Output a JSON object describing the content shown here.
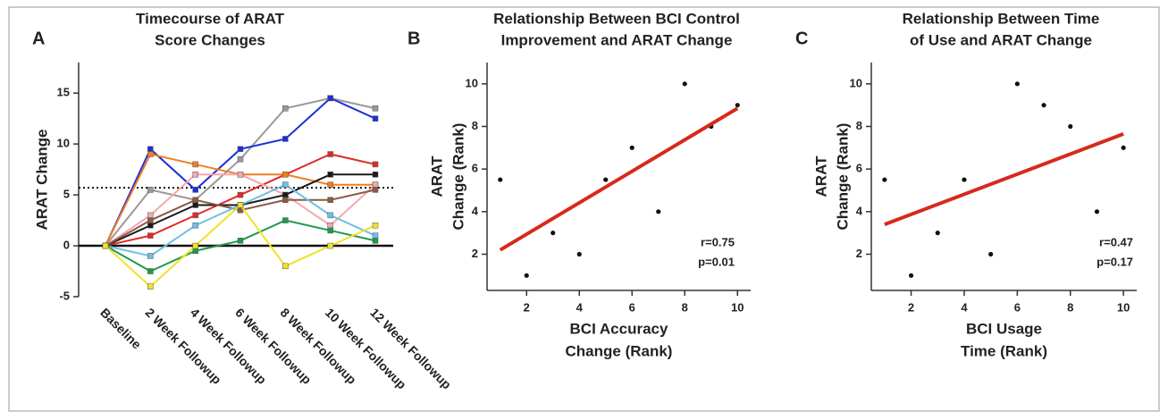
{
  "chart_data": [
    {
      "type": "line",
      "panel_label": "A",
      "title": [
        "Timecourse of ARAT",
        "Score Changes"
      ],
      "y_label": "ARAT Change",
      "categories": [
        "Baseline",
        "2 Week Followup",
        "4 Week Followup",
        "6 Week Followup",
        "8 Week Followup",
        "10 Week Followup",
        "12 Week Followup"
      ],
      "series": [
        {
          "color": "#999999",
          "values": [
            0,
            5.5,
            4.5,
            8.5,
            13.5,
            14.5,
            13.5
          ]
        },
        {
          "color": "#1f2fd6",
          "values": [
            0,
            9.5,
            5.5,
            9.5,
            10.5,
            14.5,
            12.5
          ]
        },
        {
          "color": "#e02a26",
          "values": [
            0,
            1,
            3,
            5,
            7,
            9,
            8
          ]
        },
        {
          "color": "#f07f22",
          "values": [
            0,
            9,
            8,
            7,
            7,
            6,
            6
          ]
        },
        {
          "color": "#f4a7b0",
          "values": [
            0,
            3,
            7,
            7,
            5,
            2,
            6
          ]
        },
        {
          "color": "#1a1a1a",
          "values": [
            0,
            2,
            4,
            4,
            5,
            7,
            7
          ]
        },
        {
          "color": "#8a5a44",
          "values": [
            0,
            2.5,
            4.5,
            3.5,
            4.5,
            4.5,
            5.5
          ]
        },
        {
          "color": "#6fbfe6",
          "values": [
            0,
            -1,
            2,
            4,
            6,
            3,
            1
          ]
        },
        {
          "color": "#1f9a4a",
          "values": [
            0,
            -2.5,
            -0.5,
            0.5,
            2.5,
            1.5,
            0.5
          ]
        },
        {
          "color": "#f2e227",
          "values": [
            0,
            -4,
            0,
            4,
            -2,
            0,
            2
          ]
        }
      ],
      "ylim": [
        -5,
        18
      ],
      "yticks": [
        -5,
        0,
        5,
        10,
        15
      ],
      "reference_line": 5.7,
      "zero_line": true
    },
    {
      "type": "scatter",
      "panel_label": "B",
      "title": [
        "Relationship Between BCI Control",
        "Improvement and ARAT Change"
      ],
      "x_label": [
        "BCI Accuracy",
        "Change (Rank)"
      ],
      "y_label": [
        "ARAT",
        "Change (Rank)"
      ],
      "x": [
        1,
        2,
        3,
        4,
        5,
        6,
        7,
        8,
        9,
        10
      ],
      "y": [
        5.5,
        1,
        3,
        2,
        5.5,
        7,
        4,
        10,
        8,
        9
      ],
      "color": "#111111",
      "fit": {
        "x": [
          1,
          10
        ],
        "y": [
          2.2,
          8.85
        ],
        "color": "#d62a1e"
      },
      "annotations": [
        "r=0.75",
        "p=0.01"
      ],
      "xlim": [
        0.5,
        10.5
      ],
      "ylim": [
        0.3,
        11
      ],
      "xticks": [
        2,
        4,
        6,
        8,
        10
      ],
      "yticks": [
        2,
        4,
        6,
        8,
        10
      ]
    },
    {
      "type": "scatter",
      "panel_label": "C",
      "title": [
        "Relationship Between Time",
        "of Use and ARAT Change"
      ],
      "x_label": [
        "BCI Usage",
        "Time (Rank)"
      ],
      "y_label": [
        "ARAT",
        "Change (Rank)"
      ],
      "x": [
        1,
        2,
        3,
        4,
        5,
        6,
        7,
        8,
        9,
        10
      ],
      "y": [
        5.5,
        1,
        3,
        5.5,
        2,
        10,
        9,
        8,
        4,
        7
      ],
      "color": "#111111",
      "fit": {
        "x": [
          1,
          10
        ],
        "y": [
          3.4,
          7.65
        ],
        "color": "#d62a1e"
      },
      "annotations": [
        "r=0.47",
        "p=0.17"
      ],
      "xlim": [
        0.5,
        10.5
      ],
      "ylim": [
        0.3,
        11
      ],
      "xticks": [
        2,
        4,
        6,
        8,
        10
      ],
      "yticks": [
        2,
        4,
        6,
        8,
        10
      ]
    }
  ]
}
